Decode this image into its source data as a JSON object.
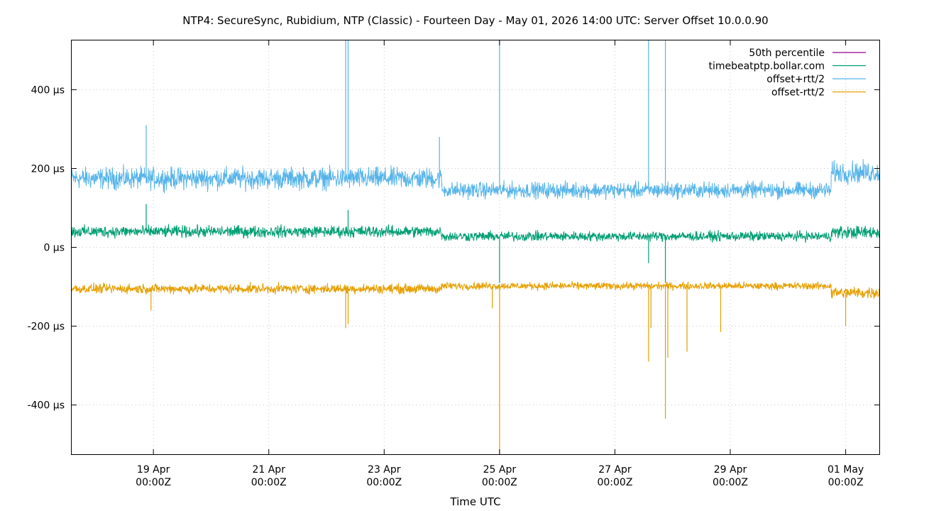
{
  "chart_data": {
    "type": "line",
    "title": "NTP4: SecureSync, Rubidium, NTP (Classic) - Fourteen Day - May 01, 2026 14:00 UTC: Server Offset 10.0.0.90",
    "xlabel": "Time UTC",
    "ylabel": "",
    "xlim": [
      "2026-04-17T14:00Z",
      "2026-05-01T14:00Z"
    ],
    "ylim": [
      -525,
      525
    ],
    "grid": true,
    "legend_position": "top-right",
    "y_ticks": [
      {
        "value": 400,
        "label": "400 µs"
      },
      {
        "value": 200,
        "label": "200 µs"
      },
      {
        "value": 0,
        "label": "0 µs"
      },
      {
        "value": -200,
        "label": "-200 µs"
      },
      {
        "value": -400,
        "label": "-400 µs"
      }
    ],
    "x_ticks": [
      {
        "value": "2026-04-19T00:00Z",
        "label_line1": "19 Apr",
        "label_line2": "00:00Z"
      },
      {
        "value": "2026-04-21T00:00Z",
        "label_line1": "21 Apr",
        "label_line2": "00:00Z"
      },
      {
        "value": "2026-04-23T00:00Z",
        "label_line1": "23 Apr",
        "label_line2": "00:00Z"
      },
      {
        "value": "2026-04-25T00:00Z",
        "label_line1": "25 Apr",
        "label_line2": "00:00Z"
      },
      {
        "value": "2026-04-27T00:00Z",
        "label_line1": "27 Apr",
        "label_line2": "00:00Z"
      },
      {
        "value": "2026-04-29T00:00Z",
        "label_line1": "29 Apr",
        "label_line2": "00:00Z"
      },
      {
        "value": "2026-05-01T00:00Z",
        "label_line1": "01 May",
        "label_line2": "00:00Z"
      }
    ],
    "series": [
      {
        "name": "50th percentile",
        "color": "#94008f",
        "segments": []
      },
      {
        "name": "timebeatptp.bollar.com",
        "color": "#009e73",
        "segments": [
          {
            "start": "2026-04-17T14:00Z",
            "end": "2026-04-24T00:00Z",
            "center": 40,
            "spread": 22
          },
          {
            "start": "2026-04-24T00:00Z",
            "end": "2026-04-30T18:00Z",
            "center": 28,
            "spread": 18
          },
          {
            "start": "2026-04-30T18:00Z",
            "end": "2026-05-01T14:00Z",
            "center": 38,
            "spread": 24
          }
        ],
        "spikes": [
          {
            "time": "2026-04-18T21:00Z",
            "value": 110
          },
          {
            "time": "2026-04-22T09:00Z",
            "value": 95
          },
          {
            "time": "2026-04-25T00:00Z",
            "value": -90
          },
          {
            "time": "2026-04-27T14:00Z",
            "value": -40
          },
          {
            "time": "2026-04-27T21:00Z",
            "value": -90
          }
        ]
      },
      {
        "name": "offset+rtt/2",
        "color": "#56b4e9",
        "segments": [
          {
            "start": "2026-04-17T14:00Z",
            "end": "2026-04-24T00:00Z",
            "center": 175,
            "spread": 40
          },
          {
            "start": "2026-04-24T00:00Z",
            "end": "2026-04-30T18:00Z",
            "center": 145,
            "spread": 30
          },
          {
            "start": "2026-04-30T18:00Z",
            "end": "2026-05-01T14:00Z",
            "center": 190,
            "spread": 40
          }
        ],
        "spikes": [
          {
            "time": "2026-04-18T21:00Z",
            "value": 310
          },
          {
            "time": "2026-04-22T08:00Z",
            "value": 530
          },
          {
            "time": "2026-04-22T09:00Z",
            "value": 530
          },
          {
            "time": "2026-04-23T23:00Z",
            "value": 280
          },
          {
            "time": "2026-04-25T00:00Z",
            "value": 530
          },
          {
            "time": "2026-04-27T14:00Z",
            "value": 530
          },
          {
            "time": "2026-04-27T21:00Z",
            "value": 530
          }
        ]
      },
      {
        "name": "offset-rtt/2",
        "color": "#e69f00",
        "segments": [
          {
            "start": "2026-04-17T14:00Z",
            "end": "2026-04-24T00:00Z",
            "center": -105,
            "spread": 18
          },
          {
            "start": "2026-04-24T00:00Z",
            "end": "2026-04-30T18:00Z",
            "center": -98,
            "spread": 14
          },
          {
            "start": "2026-04-30T18:00Z",
            "end": "2026-05-01T14:00Z",
            "center": -115,
            "spread": 22
          }
        ],
        "spikes": [
          {
            "time": "2026-04-18T23:00Z",
            "value": -160
          },
          {
            "time": "2026-04-22T08:00Z",
            "value": -205
          },
          {
            "time": "2026-04-22T09:00Z",
            "value": -195
          },
          {
            "time": "2026-04-24T21:00Z",
            "value": -155
          },
          {
            "time": "2026-04-25T00:00Z",
            "value": -530
          },
          {
            "time": "2026-04-27T14:00Z",
            "value": -290
          },
          {
            "time": "2026-04-27T15:00Z",
            "value": -205
          },
          {
            "time": "2026-04-27T21:00Z",
            "value": -435
          },
          {
            "time": "2026-04-27T22:00Z",
            "value": -280
          },
          {
            "time": "2026-04-28T06:00Z",
            "value": -265
          },
          {
            "time": "2026-04-28T20:00Z",
            "value": -215
          },
          {
            "time": "2026-05-01T00:00Z",
            "value": -200
          }
        ]
      }
    ]
  }
}
